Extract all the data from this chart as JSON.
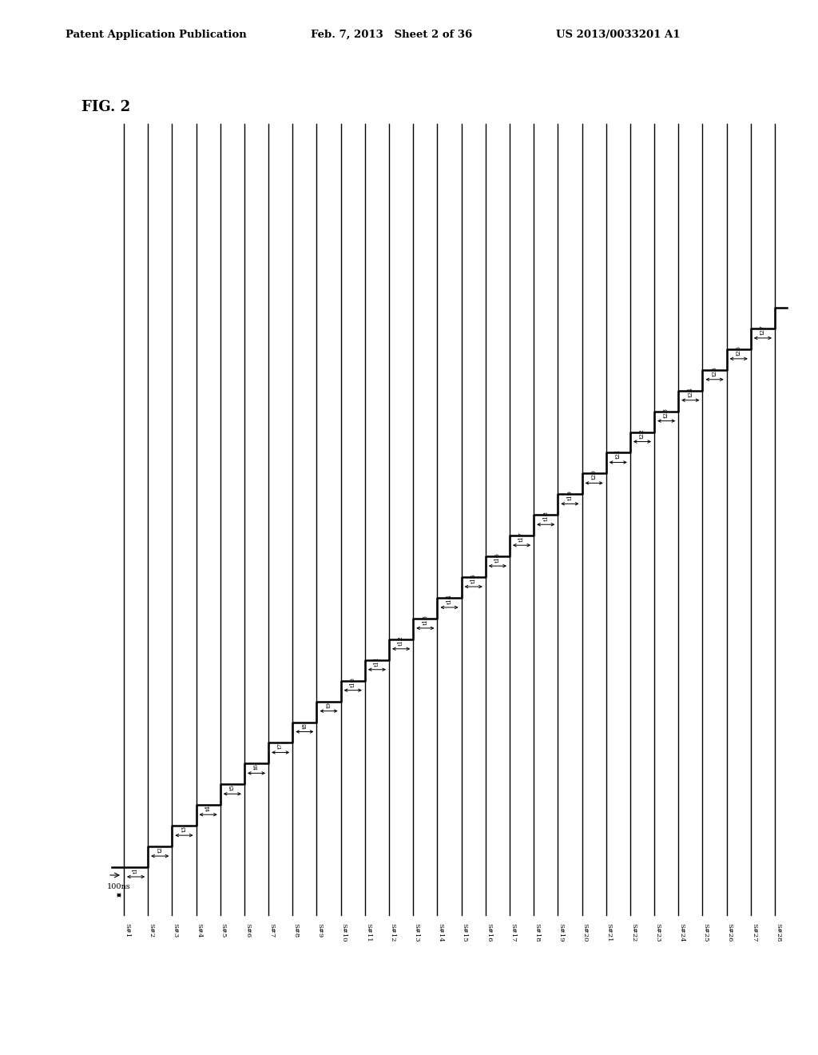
{
  "title": "FIG. 2",
  "header_left": "Patent Application Publication",
  "header_center": "Feb. 7, 2013   Sheet 2 of 36",
  "header_right": "US 2013/0033201 A1",
  "num_signals": 28,
  "signal_labels": [
    "S#1",
    "S#2",
    "S#3",
    "S#4",
    "S#5",
    "S#6",
    "S#7",
    "S#8",
    "S#9",
    "S#10",
    "S#11",
    "S#12",
    "S#13",
    "S#14",
    "S#15",
    "S#16",
    "S#17",
    "S#18",
    "S#19",
    "S#20",
    "S#21",
    "S#22",
    "S#23",
    "S#24",
    "S#25",
    "S#26",
    "S#27",
    "S#28"
  ],
  "time_labels": [
    "t1",
    "t2",
    "t3",
    "t4",
    "t5",
    "t6",
    "t7",
    "t8",
    "t9",
    "t10",
    "t11",
    "t12",
    "t13",
    "t14",
    "t15",
    "t16",
    "t17",
    "t18",
    "t19",
    "t20",
    "t21",
    "t22",
    "t23",
    "t24",
    "t25",
    "t26",
    "t27"
  ],
  "bg_color": "#ffffff",
  "line_color": "#000000",
  "annotation_100ns": "100ns"
}
